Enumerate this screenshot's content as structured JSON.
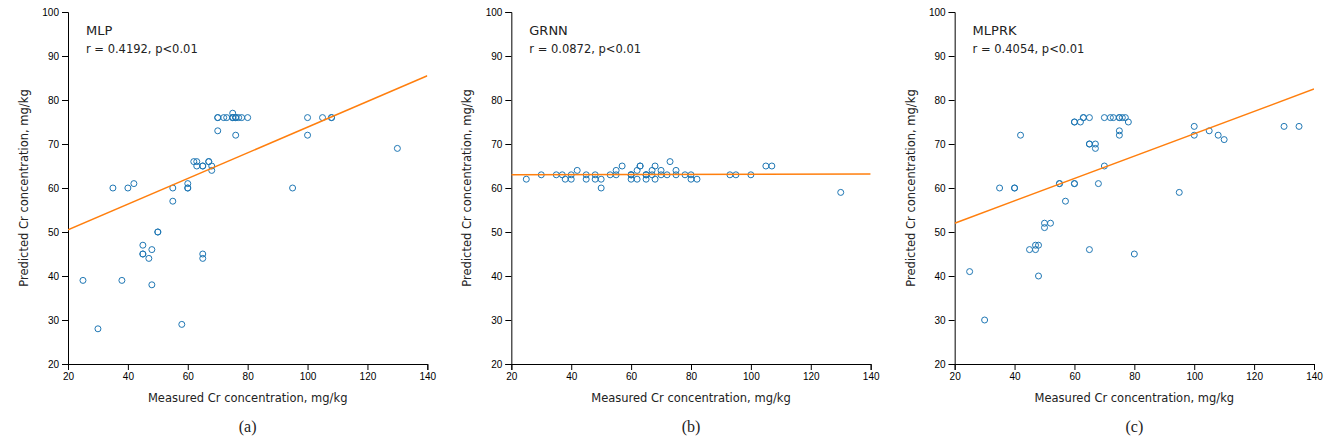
{
  "chart_data": [
    {
      "type": "scatter",
      "title": "MLP",
      "annotation": "r = 0.4192, p<0.01",
      "panel_label": "(a)",
      "xlabel": "Measured Cr concentration, mg/kg",
      "ylabel": "Predicted Cr concentration, mg/kg",
      "xlim": [
        20,
        140
      ],
      "ylim": [
        20,
        100
      ],
      "xticks": [
        20,
        40,
        60,
        80,
        100,
        120,
        140
      ],
      "yticks": [
        20,
        30,
        40,
        50,
        60,
        70,
        80,
        90,
        100
      ],
      "grid": false,
      "series": [
        {
          "type": "scatter",
          "marker": "circle-open",
          "x": [
            25,
            30,
            35,
            38,
            40,
            42,
            45,
            45,
            45,
            47,
            48,
            48,
            50,
            50,
            55,
            55,
            58,
            60,
            60,
            60,
            62,
            63,
            63,
            65,
            65,
            65,
            65,
            67,
            67,
            68,
            68,
            70,
            70,
            70,
            72,
            73,
            75,
            75,
            75,
            75,
            76,
            76,
            76,
            76,
            77,
            78,
            80,
            95,
            100,
            100,
            105,
            108,
            108,
            130
          ],
          "values": [
            39,
            28,
            60,
            39,
            60,
            61,
            45,
            45,
            47,
            44,
            38,
            46,
            50,
            50,
            57,
            60,
            29,
            60,
            60,
            61,
            66,
            65,
            66,
            45,
            44,
            65,
            65,
            66,
            66,
            64,
            65,
            73,
            76,
            76,
            76,
            76,
            76,
            77,
            76,
            76,
            72,
            76,
            76,
            76,
            76,
            76,
            76,
            60,
            76,
            72,
            76,
            76,
            76,
            69
          ]
        },
        {
          "type": "line",
          "line_style": "solid",
          "x": [
            20,
            140
          ],
          "values": [
            50.5,
            85.5
          ]
        }
      ]
    },
    {
      "type": "scatter",
      "title": "GRNN",
      "annotation": "r = 0.0872, p<0.01",
      "panel_label": "(b)",
      "xlabel": "Measured Cr concentration, mg/kg",
      "ylabel": "Predicted Cr concentration, mg/kg",
      "xlim": [
        20,
        140
      ],
      "ylim": [
        20,
        100
      ],
      "xticks": [
        20,
        40,
        60,
        80,
        100,
        120,
        140
      ],
      "yticks": [
        20,
        30,
        40,
        50,
        60,
        70,
        80,
        90,
        100
      ],
      "grid": false,
      "series": [
        {
          "type": "scatter",
          "marker": "circle-open",
          "x": [
            25,
            30,
            35,
            37,
            38,
            40,
            40,
            42,
            45,
            45,
            48,
            48,
            50,
            50,
            53,
            55,
            55,
            57,
            60,
            60,
            60,
            60,
            62,
            62,
            63,
            63,
            65,
            65,
            65,
            65,
            67,
            67,
            68,
            68,
            70,
            70,
            72,
            73,
            75,
            75,
            78,
            80,
            80,
            82,
            93,
            95,
            100,
            105,
            107,
            130
          ],
          "values": [
            62,
            63,
            63,
            63,
            62,
            63,
            62,
            64,
            63,
            62,
            62,
            63,
            62,
            60,
            63,
            64,
            63,
            65,
            63,
            63,
            62,
            63,
            62,
            64,
            65,
            65,
            63,
            62,
            63,
            63,
            63,
            64,
            62,
            65,
            64,
            63,
            63,
            66,
            64,
            63,
            63,
            62,
            63,
            62,
            63,
            63,
            63,
            65,
            65,
            59
          ]
        },
        {
          "type": "line",
          "line_style": "solid",
          "x": [
            20,
            140
          ],
          "values": [
            63.0,
            63.2
          ]
        }
      ]
    },
    {
      "type": "scatter",
      "title": "MLPRK",
      "annotation": "r = 0.4054, p<0.01",
      "panel_label": "(c)",
      "xlabel": "Measured Cr concentration, mg/kg",
      "ylabel": "Predicted Cr concentration, mg/kg",
      "xlim": [
        20,
        140
      ],
      "ylim": [
        20,
        100
      ],
      "xticks": [
        20,
        40,
        60,
        80,
        100,
        120,
        140
      ],
      "yticks": [
        20,
        30,
        40,
        50,
        60,
        70,
        80,
        90,
        100
      ],
      "grid": false,
      "series": [
        {
          "type": "scatter",
          "marker": "circle-open",
          "x": [
            25,
            30,
            35,
            40,
            40,
            42,
            45,
            47,
            47,
            48,
            48,
            50,
            50,
            52,
            55,
            55,
            57,
            60,
            60,
            60,
            60,
            62,
            63,
            63,
            65,
            65,
            65,
            65,
            67,
            67,
            68,
            70,
            70,
            72,
            73,
            75,
            75,
            75,
            75,
            76,
            77,
            78,
            80,
            95,
            100,
            100,
            105,
            108,
            110,
            130,
            135
          ],
          "values": [
            41,
            30,
            60,
            60,
            60,
            72,
            46,
            46,
            47,
            40,
            47,
            52,
            51,
            52,
            61,
            61,
            57,
            61,
            75,
            75,
            61,
            75,
            76,
            76,
            46,
            70,
            70,
            76,
            69,
            70,
            61,
            65,
            76,
            76,
            76,
            72,
            76,
            73,
            76,
            76,
            76,
            75,
            45,
            59,
            74,
            72,
            73,
            72,
            71,
            74,
            74
          ]
        },
        {
          "type": "line",
          "line_style": "solid",
          "x": [
            20,
            140
          ],
          "values": [
            52.0,
            82.5
          ]
        }
      ]
    }
  ]
}
